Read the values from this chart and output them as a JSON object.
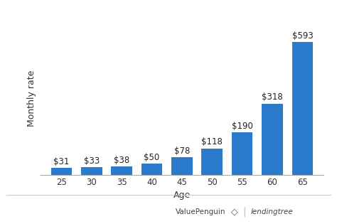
{
  "ages": [
    25,
    30,
    35,
    40,
    45,
    50,
    55,
    60,
    65
  ],
  "values": [
    31,
    33,
    38,
    50,
    78,
    118,
    190,
    318,
    593
  ],
  "labels": [
    "$31",
    "$33",
    "$38",
    "$50",
    "$78",
    "$118",
    "$190",
    "$318",
    "$593"
  ],
  "bar_color": "#2b7bcc",
  "xlabel": "Age",
  "ylabel": "Monthly rate",
  "ylim": [
    0,
    680
  ],
  "background_color": "#ffffff",
  "grid_color": "#e0e0e0",
  "xlabel_fontsize": 9,
  "ylabel_fontsize": 9,
  "tick_fontsize": 8.5,
  "label_fontsize": 8.5,
  "footer_line_color": "#cccccc",
  "vp_text": "ValuePenguin",
  "lt_text": "lendingtree",
  "vp_color": "#444444",
  "lt_color": "#444444"
}
